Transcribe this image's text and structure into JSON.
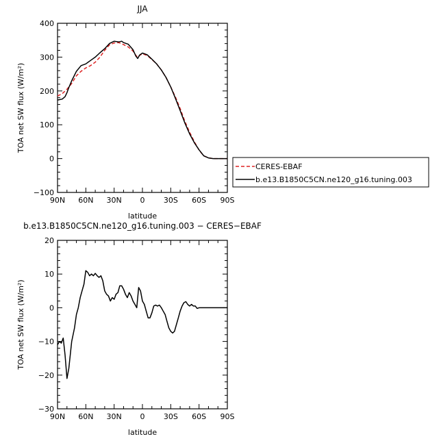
{
  "chart_data": [
    {
      "type": "line",
      "title": "JJA",
      "xlabel": "latitude",
      "ylabel": "TOA net SW flux (W/m²)",
      "xlim": [
        90,
        -90
      ],
      "ylim": [
        -100,
        400
      ],
      "x_ticks": [
        90,
        60,
        30,
        0,
        -30,
        -60,
        -90
      ],
      "x_tick_labels": [
        "90N",
        "60N",
        "30N",
        "0",
        "30S",
        "60S",
        "90S"
      ],
      "y_ticks": [
        -100,
        0,
        100,
        200,
        300,
        400
      ],
      "y_tick_labels": [
        "−100",
        "0",
        "100",
        "200",
        "300",
        "400"
      ],
      "legend": "right",
      "series": [
        {
          "name": "CERES-EBAF",
          "color": "#dd2222",
          "dash": "dashed",
          "points": [
            [
              90,
              185
            ],
            [
              85,
              192
            ],
            [
              80,
              205
            ],
            [
              75,
              222
            ],
            [
              70,
              245
            ],
            [
              65,
              258
            ],
            [
              60,
              268
            ],
            [
              55,
              275
            ],
            [
              50,
              285
            ],
            [
              45,
              300
            ],
            [
              40,
              320
            ],
            [
              35,
              336
            ],
            [
              30,
              342
            ],
            [
              25,
              343
            ],
            [
              20,
              337
            ],
            [
              15,
              330
            ],
            [
              10,
              318
            ],
            [
              7,
              305
            ],
            [
              5,
              300
            ],
            [
              3,
              305
            ],
            [
              0,
              310
            ],
            [
              -5,
              305
            ],
            [
              -10,
              293
            ],
            [
              -15,
              280
            ],
            [
              -20,
              262
            ],
            [
              -25,
              240
            ],
            [
              -30,
              212
            ],
            [
              -35,
              182
            ],
            [
              -40,
              148
            ],
            [
              -45,
              110
            ],
            [
              -50,
              78
            ],
            [
              -55,
              50
            ],
            [
              -60,
              25
            ],
            [
              -65,
              8
            ],
            [
              -70,
              2
            ],
            [
              -75,
              0
            ],
            [
              -80,
              0
            ],
            [
              -90,
              0
            ]
          ]
        },
        {
          "name": "b.e13.B1850C5CN.ne120_g16.tuning.003",
          "color": "#000000",
          "dash": "solid",
          "points": [
            [
              90,
              173
            ],
            [
              85,
              176
            ],
            [
              82,
              183
            ],
            [
              80,
              195
            ],
            [
              78,
              210
            ],
            [
              75,
              230
            ],
            [
              70,
              258
            ],
            [
              65,
              275
            ],
            [
              60,
              280
            ],
            [
              55,
              290
            ],
            [
              50,
              300
            ],
            [
              45,
              313
            ],
            [
              40,
              325
            ],
            [
              35,
              340
            ],
            [
              30,
              347
            ],
            [
              25,
              345
            ],
            [
              22,
              347
            ],
            [
              20,
              343
            ],
            [
              15,
              338
            ],
            [
              10,
              322
            ],
            [
              7,
              303
            ],
            [
              5,
              296
            ],
            [
              3,
              306
            ],
            [
              0,
              312
            ],
            [
              -5,
              307
            ],
            [
              -10,
              294
            ],
            [
              -15,
              280
            ],
            [
              -20,
              262
            ],
            [
              -25,
              240
            ],
            [
              -30,
              212
            ],
            [
              -35,
              178
            ],
            [
              -40,
              142
            ],
            [
              -45,
              105
            ],
            [
              -50,
              73
            ],
            [
              -55,
              47
            ],
            [
              -60,
              26
            ],
            [
              -65,
              8
            ],
            [
              -70,
              2
            ],
            [
              -75,
              0
            ],
            [
              -80,
              0
            ],
            [
              -90,
              0
            ]
          ]
        }
      ]
    },
    {
      "type": "line",
      "title": "b.e13.B1850C5CN.ne120_g16.tuning.003 − CERES−EBAF",
      "xlabel": "latitude",
      "ylabel": "TOA net SW flux (W/m²)",
      "xlim": [
        90,
        -90
      ],
      "ylim": [
        -30,
        20
      ],
      "x_ticks": [
        90,
        60,
        30,
        0,
        -30,
        -60,
        -90
      ],
      "x_tick_labels": [
        "90N",
        "60N",
        "30N",
        "0",
        "30S",
        "60S",
        "90S"
      ],
      "y_ticks": [
        -30,
        -20,
        -10,
        0,
        10,
        20
      ],
      "y_tick_labels": [
        "−30",
        "−20",
        "−10",
        "0",
        "10",
        "20"
      ],
      "series": [
        {
          "color": "#000000",
          "dash": "solid",
          "points": [
            [
              90,
              -11
            ],
            [
              88,
              -10
            ],
            [
              86,
              -10.5
            ],
            [
              84,
              -9
            ],
            [
              82,
              -14
            ],
            [
              80,
              -21
            ],
            [
              78,
              -18
            ],
            [
              75,
              -10
            ],
            [
              72,
              -6
            ],
            [
              70,
              -2
            ],
            [
              68,
              0
            ],
            [
              66,
              3
            ],
            [
              64,
              5
            ],
            [
              62,
              7
            ],
            [
              60,
              11
            ],
            [
              58,
              10.5
            ],
            [
              56,
              9.5
            ],
            [
              54,
              10
            ],
            [
              52,
              9.5
            ],
            [
              50,
              10.2
            ],
            [
              48,
              9.5
            ],
            [
              46,
              9
            ],
            [
              44,
              9.5
            ],
            [
              42,
              8
            ],
            [
              40,
              5
            ],
            [
              38,
              4
            ],
            [
              36,
              3.5
            ],
            [
              34,
              2
            ],
            [
              32,
              3
            ],
            [
              30,
              2.5
            ],
            [
              28,
              4
            ],
            [
              26,
              4.5
            ],
            [
              24,
              6.5
            ],
            [
              22,
              6.5
            ],
            [
              20,
              5.5
            ],
            [
              18,
              4
            ],
            [
              16,
              3
            ],
            [
              14,
              4.5
            ],
            [
              12,
              3.5
            ],
            [
              10,
              2
            ],
            [
              8,
              1
            ],
            [
              6,
              0
            ],
            [
              4,
              6
            ],
            [
              2,
              5
            ],
            [
              0,
              2
            ],
            [
              -2,
              1
            ],
            [
              -4,
              -1
            ],
            [
              -6,
              -3
            ],
            [
              -8,
              -3
            ],
            [
              -10,
              -1.5
            ],
            [
              -12,
              0.5
            ],
            [
              -14,
              0.8
            ],
            [
              -16,
              0.5
            ],
            [
              -18,
              0.8
            ],
            [
              -20,
              0
            ],
            [
              -22,
              -1
            ],
            [
              -24,
              -2
            ],
            [
              -26,
              -4
            ],
            [
              -28,
              -6
            ],
            [
              -30,
              -7
            ],
            [
              -32,
              -7.5
            ],
            [
              -34,
              -7
            ],
            [
              -36,
              -5
            ],
            [
              -38,
              -3
            ],
            [
              -40,
              -1
            ],
            [
              -42,
              0.5
            ],
            [
              -44,
              1.5
            ],
            [
              -46,
              1.8
            ],
            [
              -48,
              1
            ],
            [
              -50,
              0.5
            ],
            [
              -52,
              1
            ],
            [
              -54,
              0.5
            ],
            [
              -56,
              0.5
            ],
            [
              -58,
              -0.2
            ],
            [
              -60,
              0
            ],
            [
              -62,
              0
            ],
            [
              -65,
              0
            ],
            [
              -70,
              0
            ],
            [
              -75,
              0
            ],
            [
              -80,
              0
            ],
            [
              -85,
              0
            ],
            [
              -90,
              0
            ]
          ]
        }
      ]
    }
  ]
}
